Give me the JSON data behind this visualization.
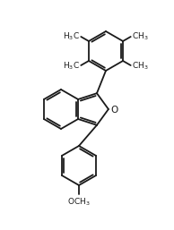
{
  "bg_color": "#ffffff",
  "line_color": "#1a1a1a",
  "line_width": 1.3,
  "font_size": 6.5,
  "text_color": "#1a1a1a"
}
